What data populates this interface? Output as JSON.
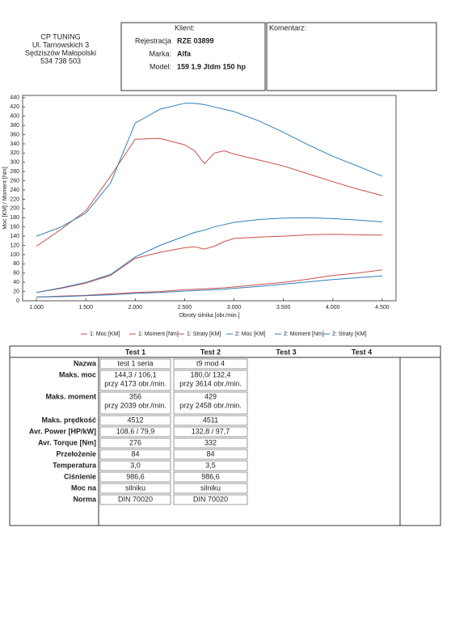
{
  "header": {
    "company": [
      "CP TUNING",
      "Ul. Tarnowskich 3",
      "Sędziszów Małopolski",
      "534 738 503"
    ],
    "client_label": "Klient:",
    "fields": [
      {
        "label": "Rejestracja",
        "value": "RZE 03899"
      },
      {
        "label": "Marka:",
        "value": "Alfa"
      },
      {
        "label": "Model:",
        "value": "159 1.9 Jtdm 150 hp"
      }
    ],
    "comment_label": "Komentarz:"
  },
  "chart_data": {
    "type": "line",
    "x_label": "Obroty silnika [obr./min.]",
    "y_label": "Moc [KM] / Moment [Nm]",
    "x": [
      1000,
      1250,
      1500,
      1750,
      2000,
      2250,
      2500,
      2600,
      2700,
      2800,
      2900,
      3000,
      3250,
      3500,
      3750,
      4000,
      4250,
      4500
    ],
    "xlim": [
      860,
      4640
    ],
    "xticks": [
      {
        "value": 1000,
        "label": "1.000"
      },
      {
        "value": 1500,
        "label": "1.500"
      },
      {
        "value": 2000,
        "label": "2.000"
      },
      {
        "value": 2500,
        "label": "2.500"
      },
      {
        "value": 3000,
        "label": "3.000"
      },
      {
        "value": 3500,
        "label": "3.500"
      },
      {
        "value": 4000,
        "label": "4.000"
      },
      {
        "value": 4500,
        "label": "4.500"
      }
    ],
    "ylim": [
      0,
      445
    ],
    "yticks": [
      0,
      20,
      40,
      60,
      80,
      100,
      120,
      140,
      160,
      180,
      200,
      220,
      240,
      260,
      280,
      300,
      320,
      340,
      360,
      380,
      400,
      420,
      440
    ],
    "grid": false,
    "series": [
      {
        "name": "1: Moc [KM]",
        "color": "#c8504a",
        "values": [
          18,
          27,
          38,
          55,
          92,
          105,
          115,
          117,
          112,
          118,
          128,
          135,
          138,
          140,
          143,
          144,
          143,
          142
        ]
      },
      {
        "name": "1: Moment [Nm]",
        "color": "#c8504a",
        "values": [
          118,
          155,
          195,
          270,
          350,
          352,
          338,
          325,
          297,
          320,
          325,
          318,
          305,
          292,
          275,
          258,
          242,
          228
        ]
      },
      {
        "name": "1: Straty [KM]",
        "color": "#c8504a",
        "values": [
          8,
          10,
          12,
          15,
          18,
          20,
          24,
          25,
          26,
          27,
          28,
          30,
          35,
          40,
          47,
          55,
          60,
          67
        ]
      },
      {
        "name": "2: Moc [KM]",
        "color": "#2f7fb5",
        "values": [
          18,
          28,
          40,
          57,
          95,
          120,
          140,
          148,
          153,
          160,
          165,
          170,
          176,
          179,
          180,
          178,
          175,
          171
        ]
      },
      {
        "name": "2: Moment [Nm]",
        "color": "#2f7fb5",
        "values": [
          140,
          160,
          190,
          255,
          385,
          415,
          428,
          428,
          425,
          420,
          415,
          410,
          390,
          365,
          338,
          313,
          292,
          270
        ]
      },
      {
        "name": "2: Straty [KM]",
        "color": "#2f7fb5",
        "values": [
          8,
          9,
          11,
          13,
          16,
          18,
          21,
          22,
          23,
          24,
          25,
          27,
          31,
          36,
          41,
          46,
          50,
          54
        ]
      }
    ]
  },
  "table": {
    "columns": [
      "Test 1",
      "Test 2",
      "Test 3",
      "Test 4"
    ],
    "rows": [
      {
        "label": "Nazwa",
        "values": [
          "test 1 seria",
          "t9 mod 4"
        ]
      },
      {
        "label": "Maks. moc",
        "values": [
          [
            "144,3 / 106,1",
            "przy 4173 obr./min."
          ],
          [
            "180,0/ 132,4",
            "przy 3614 obr./min."
          ]
        ]
      },
      {
        "label": "Maks. moment",
        "values": [
          [
            "356",
            "przy 2039 obr./min."
          ],
          [
            "429",
            "przy 2458 obr./min."
          ]
        ]
      },
      {
        "label": "Maks. prędkość",
        "values": [
          "4512",
          "4511"
        ]
      },
      {
        "label": "Avr. Power [HP/kW]",
        "values": [
          "108,6 / 79,9",
          "132,8 / 97,7"
        ]
      },
      {
        "label": "Avr. Torque [Nm]",
        "values": [
          "276",
          "332"
        ]
      },
      {
        "label": "Przełożenie",
        "values": [
          "84",
          "84"
        ]
      },
      {
        "label": "Temperatura",
        "values": [
          "3,0",
          "3,5"
        ]
      },
      {
        "label": "Ciśnienie",
        "values": [
          "986,6",
          "986,6"
        ]
      },
      {
        "label": "Moc na",
        "values": [
          "silniku",
          "silniku"
        ]
      },
      {
        "label": "Norma",
        "values": [
          "DIN 70020",
          "DIN 70020"
        ]
      }
    ]
  }
}
